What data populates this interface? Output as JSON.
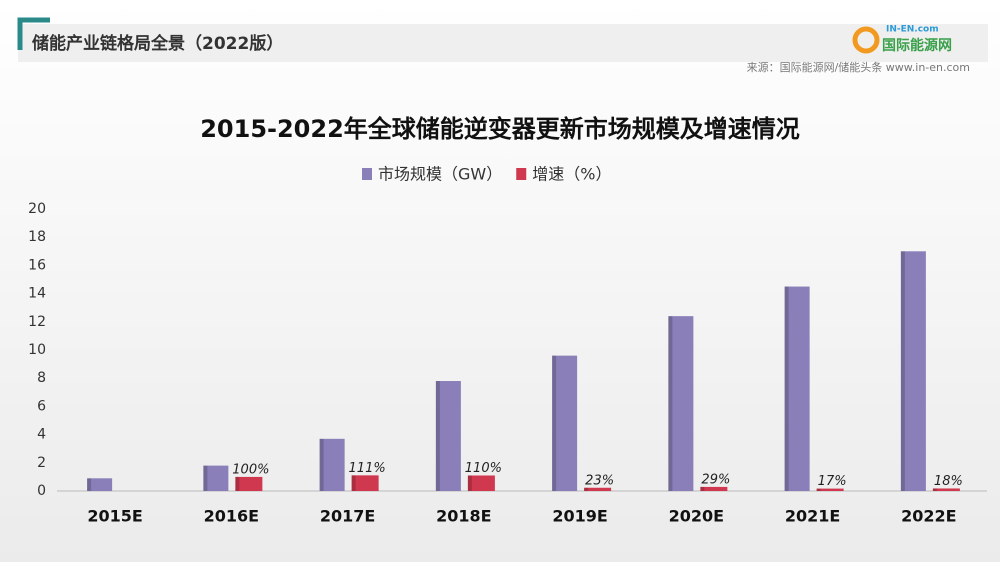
{
  "header": {
    "title": "储能产业链格局全景（2022版）",
    "source": "来源：国际能源网/储能头条 www.in-en.com",
    "logo_top": "IN-EN.com",
    "logo_main": "国际能源网"
  },
  "chart_data": {
    "type": "bar",
    "title": "2015-2022年全球储能逆变器更新市场规模及增速情况",
    "categories": [
      "2015E",
      "2016E",
      "2017E",
      "2018E",
      "2019E",
      "2020E",
      "2021E",
      "2022E"
    ],
    "series": [
      {
        "name": "市场规模（GW）",
        "color": "#8a7fb8",
        "values": [
          0.9,
          1.8,
          3.7,
          7.8,
          9.6,
          12.4,
          14.5,
          17.0
        ]
      },
      {
        "name": "增速（%）",
        "color": "#d0384f",
        "values": [
          null,
          1.0,
          1.11,
          1.1,
          0.23,
          0.29,
          0.17,
          0.18
        ],
        "value_labels": [
          null,
          "100%",
          "111%",
          "110%",
          "23%",
          "29%",
          "17%",
          "18%"
        ]
      }
    ],
    "ylim": [
      0,
      20
    ],
    "yticks": [
      0,
      2,
      4,
      6,
      8,
      10,
      12,
      14,
      16,
      18,
      20
    ],
    "grid": false,
    "legend": "top"
  }
}
